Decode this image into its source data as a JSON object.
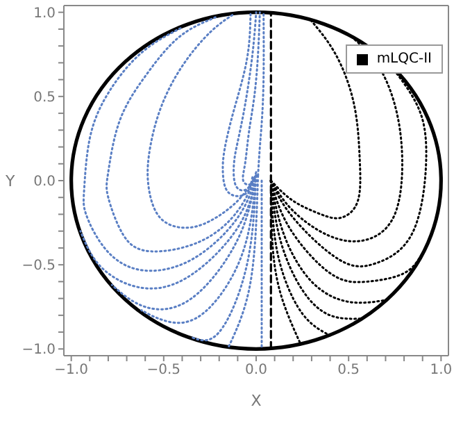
{
  "chart_data": {
    "type": "line",
    "xlabel": "X",
    "ylabel": "Y",
    "xlim": [
      -1.04,
      1.04
    ],
    "ylim": [
      -1.04,
      1.04
    ],
    "xticks": [
      {
        "value": -1,
        "label": "−1.0"
      },
      {
        "value": -0.9,
        "label": null
      },
      {
        "value": -0.8,
        "label": null
      },
      {
        "value": -0.7,
        "label": null
      },
      {
        "value": -0.6,
        "label": null
      },
      {
        "value": -0.5,
        "label": "−0.5"
      },
      {
        "value": -0.4,
        "label": null
      },
      {
        "value": -0.3,
        "label": null
      },
      {
        "value": -0.2,
        "label": null
      },
      {
        "value": -0.1,
        "label": null
      },
      {
        "value": 0,
        "label": "0.0"
      },
      {
        "value": 0.1,
        "label": null
      },
      {
        "value": 0.2,
        "label": null
      },
      {
        "value": 0.3,
        "label": null
      },
      {
        "value": 0.4,
        "label": null
      },
      {
        "value": 0.5,
        "label": "0.5"
      },
      {
        "value": 0.6,
        "label": null
      },
      {
        "value": 0.7,
        "label": null
      },
      {
        "value": 0.8,
        "label": null
      },
      {
        "value": 0.9,
        "label": null
      },
      {
        "value": 1,
        "label": "1.0"
      }
    ],
    "yticks": [
      {
        "value": -1,
        "label": "−1.0"
      },
      {
        "value": -0.9,
        "label": null
      },
      {
        "value": -0.8,
        "label": null
      },
      {
        "value": -0.7,
        "label": null
      },
      {
        "value": -0.6,
        "label": null
      },
      {
        "value": -0.5,
        "label": "−0.5"
      },
      {
        "value": -0.4,
        "label": null
      },
      {
        "value": -0.3,
        "label": null
      },
      {
        "value": -0.2,
        "label": null
      },
      {
        "value": -0.1,
        "label": null
      },
      {
        "value": 0,
        "label": "0.0"
      },
      {
        "value": 0.1,
        "label": null
      },
      {
        "value": 0.2,
        "label": null
      },
      {
        "value": 0.3,
        "label": null
      },
      {
        "value": 0.4,
        "label": null
      },
      {
        "value": 0.5,
        "label": "0.5"
      },
      {
        "value": 0.6,
        "label": null
      },
      {
        "value": 0.7,
        "label": null
      },
      {
        "value": 0.8,
        "label": null
      },
      {
        "value": 0.9,
        "label": null
      },
      {
        "value": 1,
        "label": "1.0"
      }
    ],
    "line_style": "dotted",
    "marker": "none",
    "legend": "top right",
    "grid": false,
    "series": [
      {
        "color": "#5a7fc4",
        "x": [
          0.03,
          0.03
        ],
        "values": [
          0,
          -1
        ]
      },
      {
        "color": "#5a7fc4",
        "x": [
          0.01,
          0.02,
          0.03,
          0.04,
          0.04
        ],
        "values": [
          0.03,
          0.2,
          0.34,
          0.6,
          1
        ]
      },
      {
        "color": "#5a7fc4",
        "x": [
          0,
          -0.03,
          -0.07,
          -0.06,
          -0.04,
          -0.01,
          0.01,
          0.02
        ],
        "values": [
          0.05,
          -0.02,
          0,
          0.1,
          0.28,
          0.5,
          0.75,
          1
        ]
      },
      {
        "color": "#5a7fc4",
        "x": [
          0,
          -0.05,
          -0.11,
          -0.12,
          -0.1,
          -0.06,
          -0.02,
          0
        ],
        "values": [
          0.03,
          -0.05,
          -0.03,
          0.1,
          0.23,
          0.45,
          0.75,
          1
        ]
      },
      {
        "color": "#5a7fc4",
        "x": [
          -0.02,
          -0.06,
          -0.15,
          -0.18,
          -0.17,
          -0.12,
          -0.05,
          -0.03
        ],
        "values": [
          0.02,
          -0.08,
          -0.07,
          0.05,
          0.19,
          0.42,
          0.72,
          1
        ]
      },
      {
        "color": "#5a7fc4",
        "x": [
          0,
          -0.1,
          -0.25,
          -0.39,
          -0.52,
          -0.58,
          -0.58,
          -0.52,
          -0.4,
          -0.25,
          -0.12
        ],
        "values": [
          0.03,
          -0.12,
          -0.24,
          -0.28,
          -0.22,
          -0.05,
          0.15,
          0.42,
          0.68,
          0.88,
          0.99
        ]
      },
      {
        "color": "#5a7fc4",
        "x": [
          0,
          -0.1,
          -0.3,
          -0.57,
          -0.72,
          -0.8,
          -0.8,
          -0.74,
          -0.6,
          -0.42,
          -0.22
        ],
        "values": [
          0.03,
          -0.18,
          -0.36,
          -0.42,
          -0.32,
          -0.1,
          0.05,
          0.35,
          0.62,
          0.85,
          0.97
        ]
      },
      {
        "color": "#5a7fc4",
        "x": [
          0,
          -0.1,
          -0.35,
          -0.63,
          -0.82,
          -0.92,
          -0.93,
          -0.9,
          -0.8,
          -0.62,
          -0.4
        ],
        "values": [
          0.03,
          -0.22,
          -0.47,
          -0.53,
          -0.4,
          -0.2,
          -0.05,
          0.25,
          0.52,
          0.76,
          0.91
        ]
      },
      {
        "color": "#5a7fc4",
        "x": [
          0,
          -0.1,
          -0.38,
          -0.65,
          -0.85,
          -0.95
        ],
        "values": [
          0.03,
          -0.28,
          -0.58,
          -0.63,
          -0.5,
          -0.3
        ]
      },
      {
        "color": "#5a7fc4",
        "x": [
          0,
          -0.1,
          -0.35,
          -0.6,
          -0.78
        ],
        "values": [
          0.03,
          -0.35,
          -0.7,
          -0.75,
          -0.62
        ]
      },
      {
        "color": "#5a7fc4",
        "x": [
          0,
          -0.08,
          -0.3,
          -0.5,
          -0.62
        ],
        "values": [
          0.03,
          -0.45,
          -0.8,
          -0.83,
          -0.77
        ]
      },
      {
        "color": "#5a7fc4",
        "x": [
          0,
          -0.05,
          -0.2,
          -0.35
        ],
        "values": [
          0.03,
          -0.5,
          -0.9,
          -0.93
        ]
      },
      {
        "color": "#5a7fc4",
        "x": [
          0.01,
          -0.03,
          -0.15
        ],
        "values": [
          0.03,
          -0.6,
          -0.99
        ]
      },
      {
        "color": "#000000",
        "line_style": "dashed",
        "x": [
          0.08,
          0.08
        ],
        "values": [
          -1,
          1
        ]
      },
      {
        "name": "mLQC-II",
        "color": "#000000",
        "x": [
          0.08,
          0.2,
          0.35,
          0.46,
          0.55,
          0.56,
          0.53,
          0.43,
          0.29
        ],
        "values": [
          0,
          -0.12,
          -0.2,
          -0.22,
          -0.12,
          0.13,
          0.45,
          0.75,
          0.96
        ]
      },
      {
        "color": "#000000",
        "x": [
          0.08,
          0.2,
          0.4,
          0.6,
          0.75,
          0.79,
          0.75,
          0.65,
          0.51
        ],
        "values": [
          0,
          -0.18,
          -0.33,
          -0.35,
          -0.2,
          0.13,
          0.45,
          0.7,
          0.86
        ]
      },
      {
        "color": "#000000",
        "x": [
          0.08,
          0.2,
          0.45,
          0.65,
          0.85,
          0.92,
          0.87,
          0.73
        ],
        "values": [
          0,
          -0.22,
          -0.47,
          -0.49,
          -0.3,
          0.15,
          0.45,
          0.68
        ]
      },
      {
        "color": "#000000",
        "x": [
          0.08,
          0.18,
          0.4,
          0.6,
          0.8,
          0.9
        ],
        "values": [
          0,
          -0.28,
          -0.55,
          -0.6,
          -0.55,
          -0.43
        ]
      },
      {
        "color": "#000000",
        "x": [
          0.08,
          0.15,
          0.3,
          0.5,
          0.7
        ],
        "values": [
          0,
          -0.32,
          -0.6,
          -0.72,
          -0.71
        ]
      },
      {
        "color": "#000000",
        "x": [
          0.08,
          0.13,
          0.25,
          0.4,
          0.57
        ],
        "values": [
          0,
          -0.35,
          -0.65,
          -0.8,
          -0.82
        ]
      },
      {
        "color": "#000000",
        "x": [
          0.08,
          0.11,
          0.2,
          0.3,
          0.4
        ],
        "values": [
          0,
          -0.4,
          -0.7,
          -0.85,
          -0.92
        ]
      },
      {
        "color": "#000000",
        "x": [
          0.08,
          0.09,
          0.14,
          0.24
        ],
        "values": [
          0,
          -0.4,
          -0.7,
          -0.97
        ]
      }
    ]
  }
}
